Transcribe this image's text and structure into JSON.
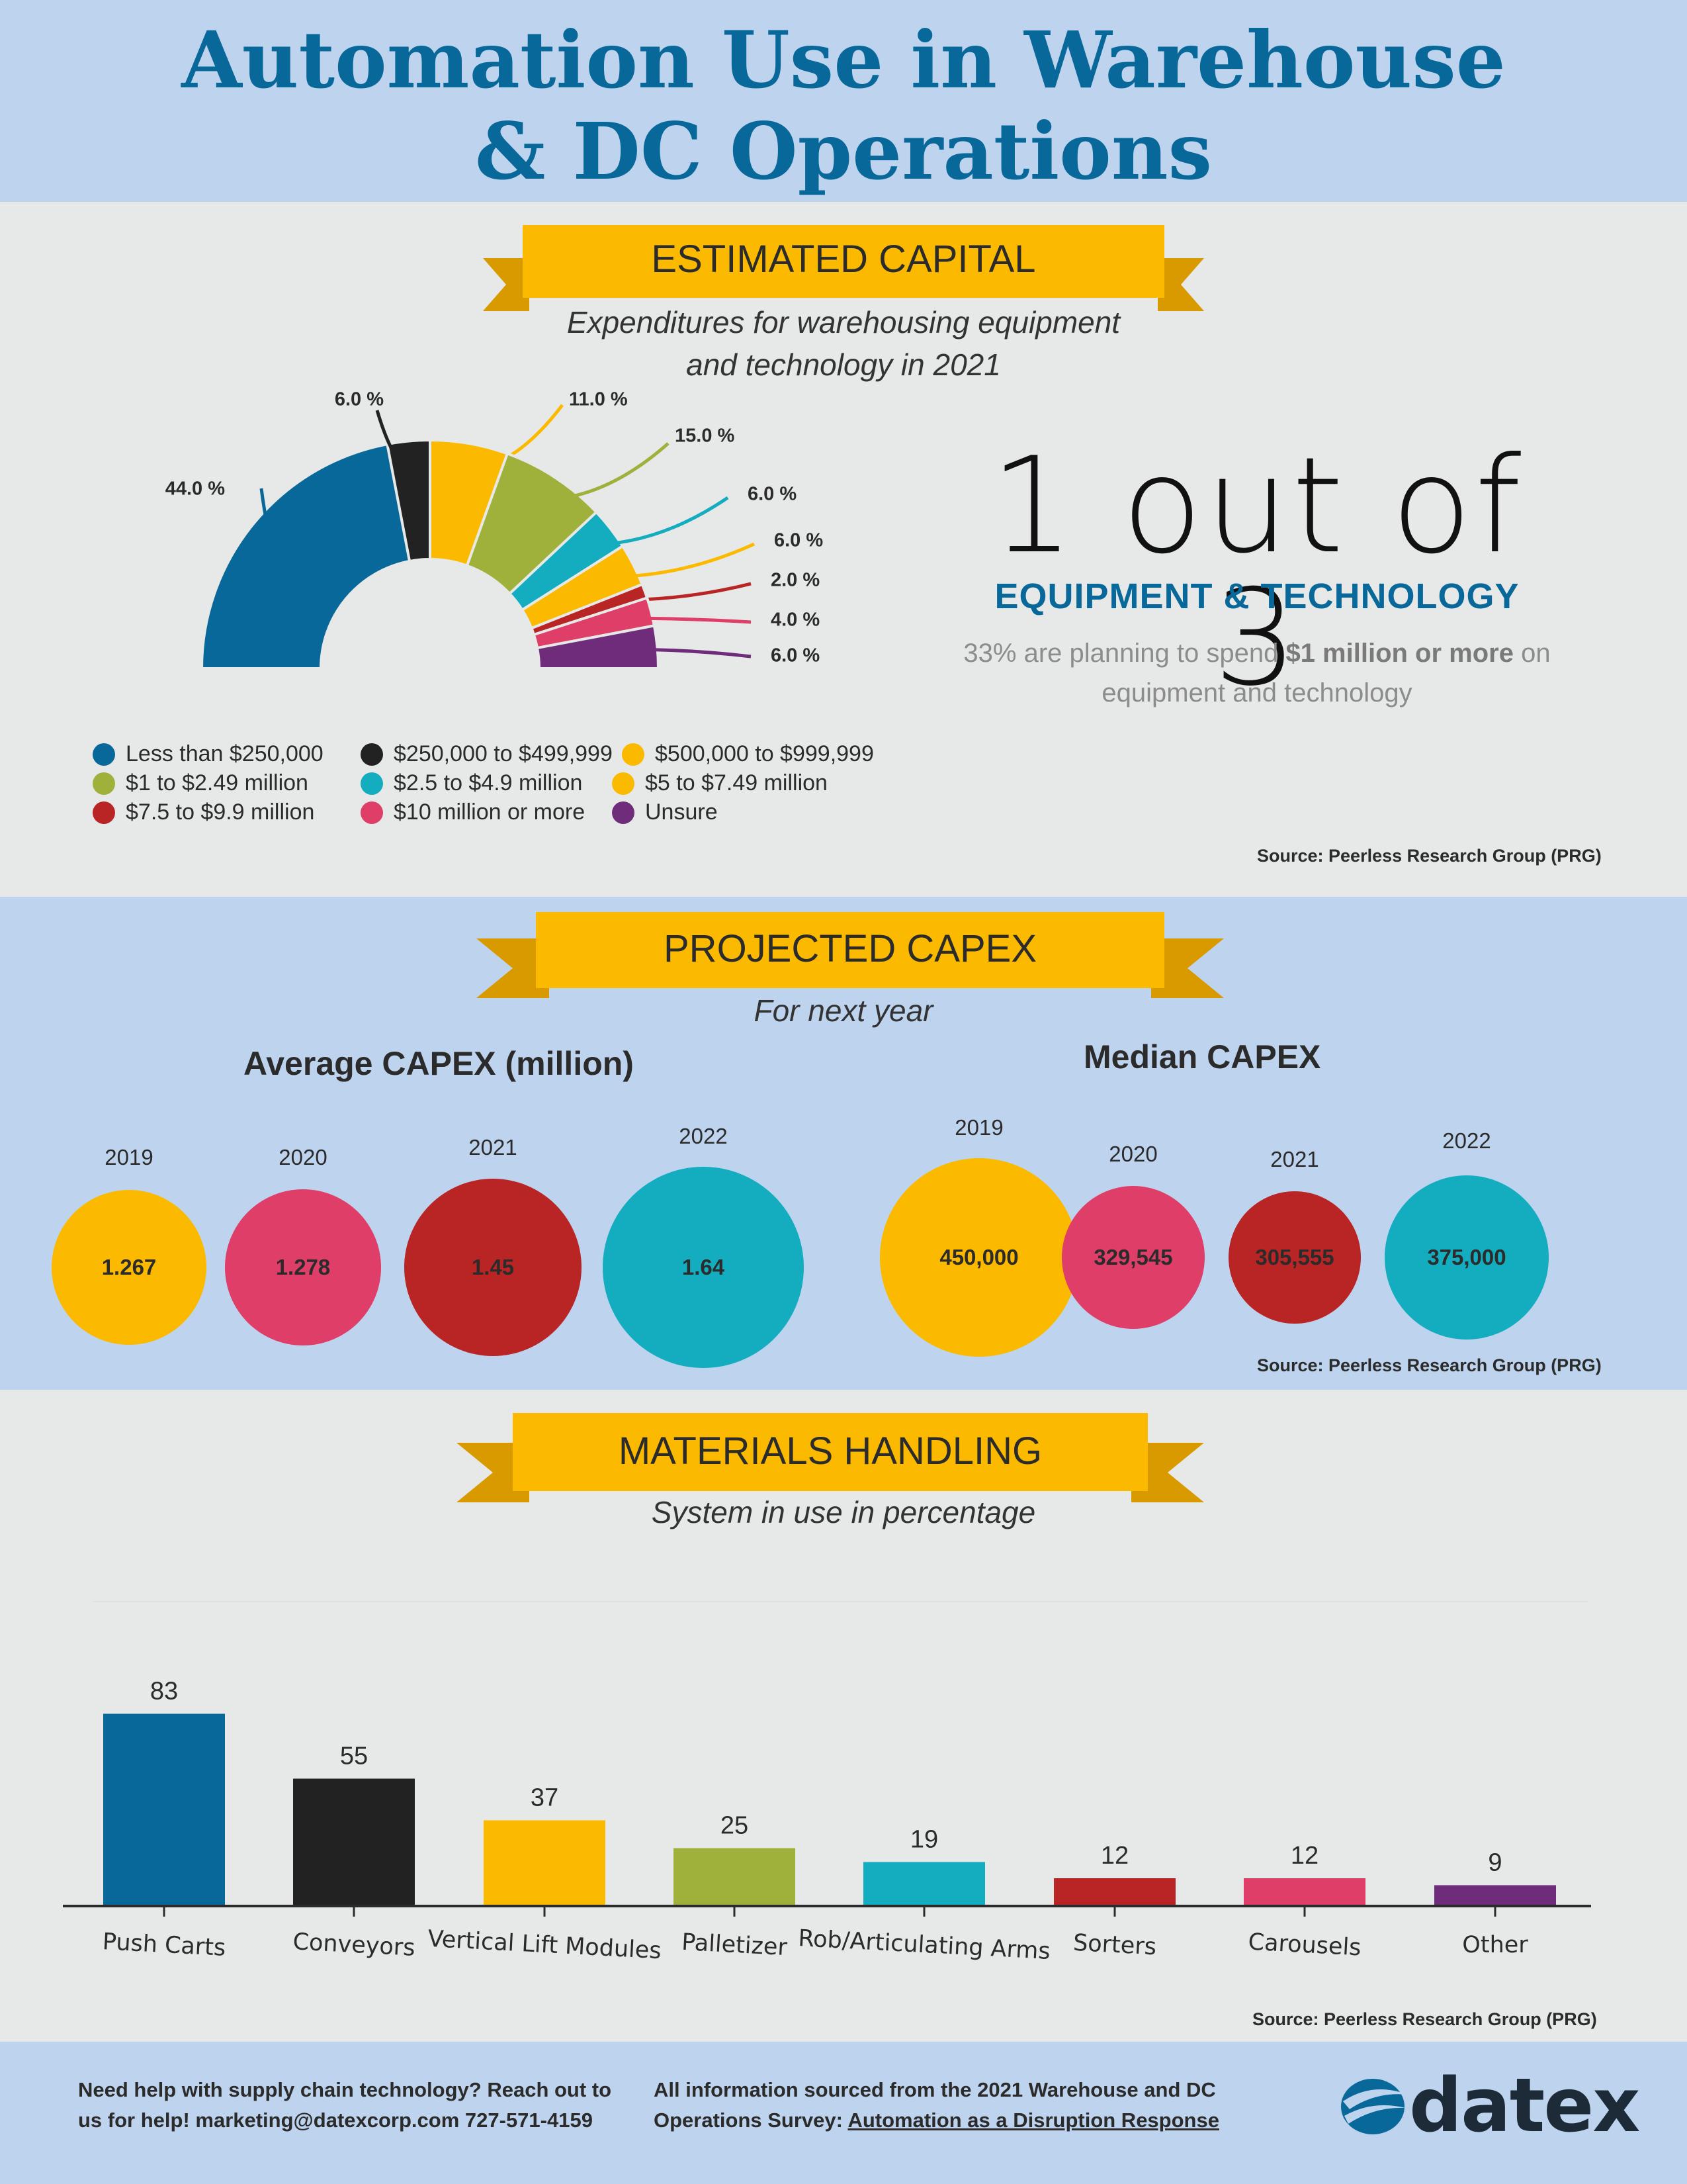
{
  "header": {
    "title_line1": "Automation Use in Warehouse",
    "title_line2": "& DC Operations"
  },
  "estimated_capital": {
    "ribbon": "ESTIMATED CAPITAL",
    "subtitle_line1": "Expenditures for warehousing equipment",
    "subtitle_line2": "and technology in 2021",
    "source": "Source: Peerless Research Group (PRG)",
    "stat": {
      "big": "1 out of 3",
      "label": "EQUIPMENT & TECHNOLOGY",
      "desc_pre": "33% are planning to spend ",
      "desc_bold": "$1 million or more",
      "desc_post": " on equipment and technology"
    }
  },
  "projected_capex": {
    "ribbon": "PROJECTED CAPEX",
    "subtitle": "For next year",
    "average_title": "Average CAPEX (million)",
    "median_title": "Median CAPEX",
    "source": "Source: Peerless Research Group (PRG)"
  },
  "materials_handling": {
    "ribbon": "MATERIALS HANDLING",
    "subtitle": "System in use in percentage",
    "source": "Source: Peerless Research Group (PRG)"
  },
  "footer": {
    "left_line1": "Need help with supply chain technology? Reach out to",
    "left_line2": "us for help! marketing@datexcorp.com 727-571-4159",
    "right_line1": "All information sourced from the 2021 Warehouse and DC",
    "right_line2_pre": "Operations Survey:  ",
    "right_line2_link": "Automation as a Disruption Response",
    "logo": "datex"
  },
  "colors": {
    "blue": "#08689a",
    "black": "#222222",
    "yellow": "#fbb900",
    "green": "#9fb13a",
    "teal": "#13adbf",
    "red": "#b92525",
    "pink": "#de3e68",
    "purple": "#6f2c7a",
    "title": "#08689a",
    "band": "#bed3ee",
    "ribbon": "#fbb900"
  },
  "chart_data": [
    {
      "type": "pie",
      "subtype": "half-donut",
      "categories": [
        "Less than $250,000",
        "$250,000 to $499,999",
        "$500,000 to $999,999",
        "$1 to $2.49 million",
        "$2.5 to $4.9 million",
        "$5 to $7.49 million",
        "$7.5 to $9.9 million",
        "$10 million or more",
        "Unsure"
      ],
      "values": [
        44.0,
        6.0,
        11.0,
        15.0,
        6.0,
        6.0,
        2.0,
        4.0,
        6.0
      ],
      "labels": [
        "44.0 %",
        "6.0 %",
        "11.0 %",
        "15.0 %",
        "6.0 %",
        "6.0 %",
        "2.0 %",
        "4.0 %",
        "6.0 %"
      ],
      "colors": [
        "#08689a",
        "#222222",
        "#fbb900",
        "#9fb13a",
        "#13adbf",
        "#fbb900",
        "#b92525",
        "#de3e68",
        "#6f2c7a"
      ],
      "legend_position": "bottom"
    },
    {
      "type": "bubble",
      "title": "Average CAPEX (million)",
      "categories": [
        "2019",
        "2020",
        "2021",
        "2022"
      ],
      "values": [
        1.267,
        1.278,
        1.45,
        1.64
      ],
      "labels": [
        "1.267",
        "1.278",
        "1.45",
        "1.64"
      ],
      "colors": [
        "#fbb900",
        "#de3e68",
        "#b92525",
        "#13adbf"
      ]
    },
    {
      "type": "bubble",
      "title": "Median CAPEX",
      "categories": [
        "2019",
        "2020",
        "2021",
        "2022"
      ],
      "values": [
        450000,
        329545,
        305555,
        375000
      ],
      "labels": [
        "450,000",
        "329,545",
        "305,555",
        "375,000"
      ],
      "colors": [
        "#fbb900",
        "#de3e68",
        "#b92525",
        "#13adbf"
      ]
    },
    {
      "type": "bar",
      "categories": [
        "Push Carts",
        "Conveyors",
        "Vertical Lift Modules",
        "Palletizer",
        "Rob/Articulating Arms",
        "Sorters",
        "Carousels",
        "Other"
      ],
      "values": [
        83,
        55,
        37,
        25,
        19,
        12,
        12,
        9
      ],
      "colors": [
        "#08689a",
        "#222222",
        "#fbb900",
        "#9fb13a",
        "#13adbf",
        "#b92525",
        "#de3e68",
        "#6f2c7a"
      ],
      "ylim": [
        0,
        90
      ],
      "grid": false
    }
  ]
}
